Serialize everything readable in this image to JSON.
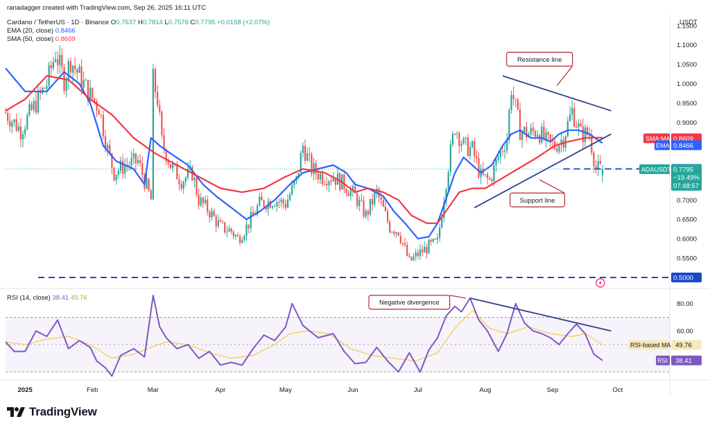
{
  "attribution": "ranadagger created with TradingView.com, Sep 26, 2025 16:11 UTC",
  "header": {
    "symbol": "Cardano / TetherUS · 1D · Binance",
    "ohlc": [
      {
        "k": "O",
        "v": "0.7637"
      },
      {
        "k": "H",
        "v": "0.7814"
      },
      {
        "k": "L",
        "v": "0.7576"
      },
      {
        "k": "C",
        "v": "0.7795"
      }
    ],
    "change": "+0.0158 (+2.07%)",
    "ema_label": "EMA (20, close)",
    "ema_value": "0.8466",
    "sma_label": "SMA (50, close)",
    "sma_value": "0.8609"
  },
  "currency": "USDT",
  "brand": "TradingView",
  "colors": {
    "up": "#26a69a",
    "down": "#ef5350",
    "ema": "#2962ff",
    "sma": "#f23645",
    "rsi": "#7e57c2",
    "rsi_ma": "#f7c94b",
    "annotation": "#b22833",
    "trendline": "#2f3f8f",
    "level": "#1848cc"
  },
  "chart_data": [
    {
      "type": "candlestick",
      "title": "Cardano / TetherUS · 1D · Binance",
      "y_axis": {
        "ylim": [
          0.475,
          1.18
        ],
        "ticks": [
          "1.1500",
          "1.1000",
          "1.0500",
          "1.0000",
          "0.9500",
          "0.9000",
          "0.7000",
          "0.6500",
          "0.6000",
          "0.5500"
        ],
        "tick_values": [
          1.15,
          1.1,
          1.05,
          1.0,
          0.95,
          0.9,
          0.7,
          0.65,
          0.6,
          0.55
        ]
      },
      "x_axis": {
        "labels": [
          "2025",
          "Feb",
          "Mar",
          "Apr",
          "May",
          "Jun",
          "Jul",
          "Aug",
          "Sep",
          "Oct"
        ],
        "label_days": [
          0,
          31,
          59,
          90,
          120,
          151,
          181,
          212,
          243,
          273
        ],
        "range_days": [
          -9,
          297
        ]
      },
      "close_path": [
        [
          -9,
          0.925
        ],
        [
          -2,
          0.88
        ],
        [
          5,
          0.95
        ],
        [
          10,
          1.0
        ],
        [
          14,
          1.08
        ],
        [
          18,
          1.01
        ],
        [
          21,
          1.06
        ],
        [
          25,
          1.02
        ],
        [
          30,
          0.97
        ],
        [
          34,
          0.94
        ],
        [
          38,
          0.83
        ],
        [
          41,
          0.77
        ],
        [
          46,
          0.79
        ],
        [
          52,
          0.8
        ],
        [
          58,
          0.7
        ],
        [
          59,
          1.01
        ],
        [
          61,
          0.96
        ],
        [
          63,
          0.85
        ],
        [
          67,
          0.79
        ],
        [
          72,
          0.75
        ],
        [
          77,
          0.77
        ],
        [
          80,
          0.7
        ],
        [
          85,
          0.67
        ],
        [
          90,
          0.63
        ],
        [
          95,
          0.62
        ],
        [
          98,
          0.6
        ],
        [
          102,
          0.63
        ],
        [
          108,
          0.69
        ],
        [
          115,
          0.7
        ],
        [
          120,
          0.69
        ],
        [
          125,
          0.75
        ],
        [
          128,
          0.84
        ],
        [
          132,
          0.78
        ],
        [
          137,
          0.76
        ],
        [
          142,
          0.76
        ],
        [
          147,
          0.74
        ],
        [
          152,
          0.71
        ],
        [
          157,
          0.66
        ],
        [
          162,
          0.72
        ],
        [
          168,
          0.63
        ],
        [
          172,
          0.62
        ],
        [
          177,
          0.54
        ],
        [
          181,
          0.56
        ],
        [
          186,
          0.58
        ],
        [
          190,
          0.59
        ],
        [
          195,
          0.79
        ],
        [
          198,
          0.89
        ],
        [
          202,
          0.84
        ],
        [
          206,
          0.83
        ],
        [
          210,
          0.76
        ],
        [
          214,
          0.75
        ],
        [
          218,
          0.81
        ],
        [
          222,
          0.86
        ],
        [
          224,
          0.99
        ],
        [
          228,
          0.88
        ],
        [
          232,
          0.87
        ],
        [
          236,
          0.88
        ],
        [
          240,
          0.85
        ],
        [
          244,
          0.84
        ],
        [
          248,
          0.86
        ],
        [
          252,
          0.93
        ],
        [
          256,
          0.87
        ],
        [
          260,
          0.87
        ],
        [
          263,
          0.78
        ],
        [
          266,
          0.7795
        ]
      ],
      "series": [
        {
          "name": "EMA (20, close)",
          "points": [
            [
              -9,
              1.04
            ],
            [
              0,
              0.98
            ],
            [
              10,
              0.98
            ],
            [
              18,
              1.03
            ],
            [
              25,
              1.0
            ],
            [
              30,
              0.95
            ],
            [
              36,
              0.84
            ],
            [
              42,
              0.8
            ],
            [
              50,
              0.78
            ],
            [
              55,
              0.74
            ],
            [
              58,
              0.86
            ],
            [
              62,
              0.84
            ],
            [
              67,
              0.82
            ],
            [
              75,
              0.79
            ],
            [
              82,
              0.74
            ],
            [
              88,
              0.71
            ],
            [
              95,
              0.68
            ],
            [
              102,
              0.65
            ],
            [
              108,
              0.67
            ],
            [
              115,
              0.7
            ],
            [
              122,
              0.74
            ],
            [
              128,
              0.77
            ],
            [
              135,
              0.78
            ],
            [
              142,
              0.79
            ],
            [
              148,
              0.77
            ],
            [
              152,
              0.74
            ],
            [
              158,
              0.73
            ],
            [
              165,
              0.71
            ],
            [
              170,
              0.67
            ],
            [
              175,
              0.64
            ],
            [
              181,
              0.6
            ],
            [
              186,
              0.605
            ],
            [
              190,
              0.64
            ],
            [
              195,
              0.72
            ],
            [
              198,
              0.77
            ],
            [
              202,
              0.81
            ],
            [
              206,
              0.79
            ],
            [
              210,
              0.77
            ],
            [
              215,
              0.79
            ],
            [
              220,
              0.84
            ],
            [
              224,
              0.87
            ],
            [
              228,
              0.88
            ],
            [
              233,
              0.86
            ],
            [
              238,
              0.86
            ],
            [
              242,
              0.85
            ],
            [
              246,
              0.87
            ],
            [
              250,
              0.88
            ],
            [
              255,
              0.88
            ],
            [
              260,
              0.87
            ],
            [
              266,
              0.8466
            ]
          ]
        },
        {
          "name": "SMA (50, close)",
          "points": [
            [
              -9,
              0.93
            ],
            [
              0,
              0.96
            ],
            [
              10,
              1.02
            ],
            [
              20,
              1.01
            ],
            [
              30,
              0.96
            ],
            [
              40,
              0.92
            ],
            [
              50,
              0.86
            ],
            [
              60,
              0.82
            ],
            [
              70,
              0.79
            ],
            [
              80,
              0.76
            ],
            [
              90,
              0.73
            ],
            [
              100,
              0.72
            ],
            [
              110,
              0.73
            ],
            [
              120,
              0.76
            ],
            [
              128,
              0.78
            ],
            [
              138,
              0.77
            ],
            [
              145,
              0.75
            ],
            [
              152,
              0.72
            ],
            [
              158,
              0.73
            ],
            [
              165,
              0.72
            ],
            [
              172,
              0.7
            ],
            [
              178,
              0.66
            ],
            [
              185,
              0.64
            ],
            [
              190,
              0.64
            ],
            [
              195,
              0.68
            ],
            [
              200,
              0.72
            ],
            [
              206,
              0.73
            ],
            [
              212,
              0.73
            ],
            [
              218,
              0.75
            ],
            [
              224,
              0.77
            ],
            [
              230,
              0.79
            ],
            [
              236,
              0.81
            ],
            [
              244,
              0.84
            ],
            [
              250,
              0.85
            ],
            [
              258,
              0.86
            ],
            [
              266,
              0.8609
            ]
          ]
        },
        {
          "name": "Resistance line",
          "points": [
            [
              220,
              1.02
            ],
            [
              270,
              0.93
            ]
          ]
        },
        {
          "name": "Support line",
          "points": [
            [
              207,
              0.68
            ],
            [
              270,
              0.87
            ]
          ]
        }
      ],
      "levels": [
        {
          "label": "0.5000",
          "value": 0.5
        },
        {
          "label": "0.7800",
          "value": 0.78
        }
      ],
      "price_tags": [
        {
          "text": "SMA:MA",
          "value_text": "0.8609",
          "value": 0.8609,
          "color": "#f23645"
        },
        {
          "text": "EMA",
          "value_text": "0.8466",
          "value": 0.8466,
          "color": "#2962ff"
        },
        {
          "text": "ADAUSDT",
          "value_text": "0.7795",
          "value": 0.7795,
          "color": "#26a69a",
          "extra": [
            "−19.49%",
            "07:48:57"
          ]
        }
      ],
      "annotations": [
        {
          "text": "Resistance line",
          "value": 1.063,
          "day": 237
        },
        {
          "text": "Support line",
          "value": 0.7,
          "day": 236
        }
      ]
    },
    {
      "type": "line",
      "title": "RSI (14, close)",
      "header_values": [
        "38.41",
        "49.76"
      ],
      "y_axis": {
        "ylim": [
          25,
          90
        ],
        "ticks": [
          "80.00",
          "60.00"
        ],
        "tick_values": [
          80,
          60
        ]
      },
      "bands": [
        70,
        30
      ],
      "series": [
        {
          "name": "RSI",
          "points": [
            [
              -9,
              52
            ],
            [
              -5,
              45
            ],
            [
              0,
              45
            ],
            [
              5,
              60
            ],
            [
              10,
              56
            ],
            [
              15,
              68
            ],
            [
              20,
              47
            ],
            [
              25,
              53
            ],
            [
              30,
              48
            ],
            [
              33,
              38
            ],
            [
              37,
              33
            ],
            [
              40,
              27
            ],
            [
              44,
              42
            ],
            [
              50,
              47
            ],
            [
              55,
              41
            ],
            [
              59,
              86
            ],
            [
              62,
              63
            ],
            [
              65,
              55
            ],
            [
              70,
              47
            ],
            [
              75,
              50
            ],
            [
              80,
              40
            ],
            [
              85,
              45
            ],
            [
              90,
              35
            ],
            [
              95,
              37
            ],
            [
              100,
              35
            ],
            [
              105,
              47
            ],
            [
              110,
              57
            ],
            [
              115,
              53
            ],
            [
              120,
              63
            ],
            [
              123,
              80
            ],
            [
              128,
              64
            ],
            [
              135,
              55
            ],
            [
              142,
              58
            ],
            [
              147,
              45
            ],
            [
              152,
              36
            ],
            [
              157,
              37
            ],
            [
              162,
              48
            ],
            [
              167,
              38
            ],
            [
              172,
              30
            ],
            [
              177,
              44
            ],
            [
              182,
              30
            ],
            [
              186,
              46
            ],
            [
              190,
              55
            ],
            [
              194,
              71
            ],
            [
              198,
              78
            ],
            [
              201,
              74
            ],
            [
              205,
              84
            ],
            [
              209,
              68
            ],
            [
              213,
              60
            ],
            [
              218,
              45
            ],
            [
              222,
              58
            ],
            [
              226,
              80
            ],
            [
              230,
              66
            ],
            [
              234,
              60
            ],
            [
              238,
              58
            ],
            [
              242,
              55
            ],
            [
              246,
              50
            ],
            [
              250,
              58
            ],
            [
              254,
              65
            ],
            [
              258,
              58
            ],
            [
              262,
              43
            ],
            [
              266,
              38.41
            ]
          ]
        },
        {
          "name": "RSI-based MA",
          "points": [
            [
              -9,
              52
            ],
            [
              0,
              50
            ],
            [
              10,
              54
            ],
            [
              20,
              56
            ],
            [
              30,
              50
            ],
            [
              40,
              40
            ],
            [
              50,
              43
            ],
            [
              58,
              48
            ],
            [
              65,
              52
            ],
            [
              75,
              50
            ],
            [
              85,
              44
            ],
            [
              95,
              40
            ],
            [
              105,
              42
            ],
            [
              115,
              50
            ],
            [
              122,
              58
            ],
            [
              130,
              60
            ],
            [
              140,
              58
            ],
            [
              150,
              47
            ],
            [
              160,
              42
            ],
            [
              170,
              40
            ],
            [
              180,
              38
            ],
            [
              190,
              44
            ],
            [
              198,
              62
            ],
            [
              206,
              75
            ],
            [
              214,
              62
            ],
            [
              222,
              58
            ],
            [
              232,
              63
            ],
            [
              242,
              58
            ],
            [
              252,
              56
            ],
            [
              258,
              58
            ],
            [
              262,
              54
            ],
            [
              266,
              49.76
            ]
          ]
        },
        {
          "name": "Negative divergence",
          "points": [
            [
              205,
              84
            ],
            [
              270,
              60
            ]
          ]
        }
      ],
      "price_tags": [
        {
          "text": "RSI-based MA",
          "value_text": "49.76",
          "value": 49.76,
          "color": "#f7c94b"
        },
        {
          "text": "RSI",
          "value_text": "38.41",
          "value": 38.41,
          "color": "#7e57c2"
        }
      ],
      "annotations": [
        {
          "text": "Negative divergence",
          "value": 81,
          "day": 177
        }
      ]
    }
  ]
}
